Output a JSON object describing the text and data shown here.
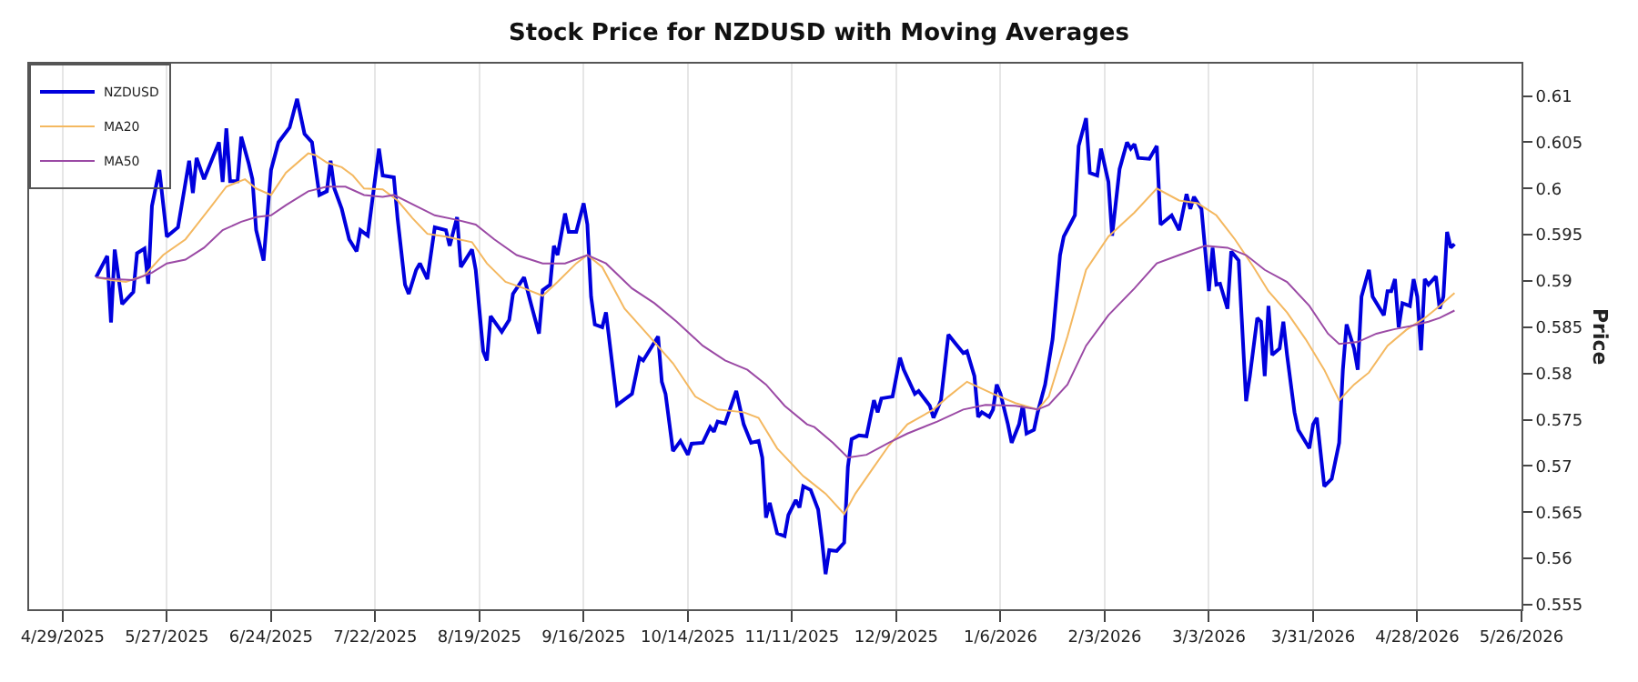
{
  "chart_data": {
    "type": "line",
    "title": "Stock Price for NZDUSD with Moving Averages",
    "ylabel": "Price",
    "xlim": [
      "2025-04-20",
      "2026-05-26"
    ],
    "xticks": [
      {
        "value": "2025-04-29",
        "label": "4/29/2025"
      },
      {
        "value": "2025-05-27",
        "label": "5/27/2025"
      },
      {
        "value": "2025-06-24",
        "label": "6/24/2025"
      },
      {
        "value": "2025-07-22",
        "label": "7/22/2025"
      },
      {
        "value": "2025-08-19",
        "label": "8/19/2025"
      },
      {
        "value": "2025-09-16",
        "label": "9/16/2025"
      },
      {
        "value": "2025-10-14",
        "label": "10/14/2025"
      },
      {
        "value": "2025-11-11",
        "label": "11/11/2025"
      },
      {
        "value": "2025-12-09",
        "label": "12/9/2025"
      },
      {
        "value": "2026-01-06",
        "label": "1/6/2026"
      },
      {
        "value": "2026-02-03",
        "label": "2/3/2026"
      },
      {
        "value": "2026-03-03",
        "label": "3/3/2026"
      },
      {
        "value": "2026-03-31",
        "label": "3/31/2026"
      },
      {
        "value": "2026-04-28",
        "label": "4/28/2026"
      },
      {
        "value": "2026-05-26",
        "label": "5/26/2026"
      }
    ],
    "ylim": [
      0.5545,
      0.6135
    ],
    "yticks": [
      0.555,
      0.56,
      0.565,
      0.57,
      0.575,
      0.58,
      0.585,
      0.59,
      0.595,
      0.6,
      0.605,
      0.61
    ],
    "grid": "x",
    "legend": "top left",
    "series": [
      {
        "name": "NZDUSD",
        "color": "#0000dd",
        "x": [
          "2025-05-08",
          "2025-05-11",
          "2025-05-12",
          "2025-05-13",
          "2025-05-15",
          "2025-05-18",
          "2025-05-19",
          "2025-05-21",
          "2025-05-22",
          "2025-05-23",
          "2025-05-25",
          "2025-05-27",
          "2025-05-30",
          "2025-06-02",
          "2025-06-03",
          "2025-06-04",
          "2025-06-06",
          "2025-06-10",
          "2025-06-11",
          "2025-06-12",
          "2025-06-13",
          "2025-06-15",
          "2025-06-16",
          "2025-06-18",
          "2025-06-19",
          "2025-06-20",
          "2025-06-22",
          "2025-06-24",
          "2025-06-26",
          "2025-06-29",
          "2025-07-01",
          "2025-07-03",
          "2025-07-05",
          "2025-07-07",
          "2025-07-09",
          "2025-07-10",
          "2025-07-11",
          "2025-07-13",
          "2025-07-15",
          "2025-07-17",
          "2025-07-18",
          "2025-07-20",
          "2025-07-23",
          "2025-07-24",
          "2025-07-27",
          "2025-07-28",
          "2025-07-30",
          "2025-07-31",
          "2025-08-02",
          "2025-08-03",
          "2025-08-05",
          "2025-08-07",
          "2025-08-10",
          "2025-08-11",
          "2025-08-13",
          "2025-08-14",
          "2025-08-17",
          "2025-08-18",
          "2025-08-20",
          "2025-08-21",
          "2025-08-22",
          "2025-08-25",
          "2025-08-27",
          "2025-08-28",
          "2025-08-31",
          "2025-09-02",
          "2025-09-04",
          "2025-09-05",
          "2025-09-07",
          "2025-09-08",
          "2025-09-09",
          "2025-09-11",
          "2025-09-12",
          "2025-09-14",
          "2025-09-16",
          "2025-09-17",
          "2025-09-18",
          "2025-09-19",
          "2025-09-21",
          "2025-09-22",
          "2025-09-25",
          "2025-09-29",
          "2025-10-01",
          "2025-10-02",
          "2025-10-06",
          "2025-10-07",
          "2025-10-08",
          "2025-10-10",
          "2025-10-12",
          "2025-10-14",
          "2025-10-15",
          "2025-10-18",
          "2025-10-20",
          "2025-10-21",
          "2025-10-22",
          "2025-10-24",
          "2025-10-27",
          "2025-10-29",
          "2025-10-31",
          "2025-11-02",
          "2025-11-03",
          "2025-11-04",
          "2025-11-05",
          "2025-11-07",
          "2025-11-09",
          "2025-11-10",
          "2025-11-12",
          "2025-11-13",
          "2025-11-14",
          "2025-11-16",
          "2025-11-18",
          "2025-11-19",
          "2025-11-20",
          "2025-11-21",
          "2025-11-23",
          "2025-11-25",
          "2025-11-26",
          "2025-11-27",
          "2025-11-29",
          "2025-12-01",
          "2025-12-03",
          "2025-12-04",
          "2025-12-05",
          "2025-12-08",
          "2025-12-10",
          "2025-12-11",
          "2025-12-14",
          "2025-12-15",
          "2025-12-18",
          "2025-12-19",
          "2025-12-21",
          "2025-12-23",
          "2025-12-25",
          "2025-12-27",
          "2025-12-28",
          "2025-12-30",
          "2025-12-31",
          "2026-01-01",
          "2026-01-03",
          "2026-01-04",
          "2026-01-05",
          "2026-01-06",
          "2026-01-08",
          "2026-01-09",
          "2026-01-11",
          "2026-01-12",
          "2026-01-13",
          "2026-01-15",
          "2026-01-16",
          "2026-01-18",
          "2026-01-20",
          "2026-01-22",
          "2026-01-23",
          "2026-01-26",
          "2026-01-27",
          "2026-01-29",
          "2026-01-30",
          "2026-02-01",
          "2026-02-02",
          "2026-02-04",
          "2026-02-05",
          "2026-02-07",
          "2026-02-09",
          "2026-02-10",
          "2026-02-11",
          "2026-02-12",
          "2026-02-15",
          "2026-02-17",
          "2026-02-18",
          "2026-02-21",
          "2026-02-23",
          "2026-02-25",
          "2026-02-26",
          "2026-02-27",
          "2026-03-01",
          "2026-03-03",
          "2026-03-04",
          "2026-03-05",
          "2026-03-06",
          "2026-03-08",
          "2026-03-09",
          "2026-03-11",
          "2026-03-13",
          "2026-03-14",
          "2026-03-16",
          "2026-03-17",
          "2026-03-18",
          "2026-03-19",
          "2026-03-20",
          "2026-03-22",
          "2026-03-23",
          "2026-03-24",
          "2026-03-26",
          "2026-03-27",
          "2026-03-30",
          "2026-03-31",
          "2026-04-01",
          "2026-04-03",
          "2026-04-05",
          "2026-04-07",
          "2026-04-08",
          "2026-04-09",
          "2026-04-11",
          "2026-04-12",
          "2026-04-13",
          "2026-04-15",
          "2026-04-16",
          "2026-04-19",
          "2026-04-20",
          "2026-04-21",
          "2026-04-22",
          "2026-04-23",
          "2026-04-24",
          "2026-04-26",
          "2026-04-27",
          "2026-04-28",
          "2026-04-29",
          "2026-04-30",
          "2026-05-01",
          "2026-05-03",
          "2026-05-04",
          "2026-05-05",
          "2026-05-06",
          "2026-05-07",
          "2026-05-08"
        ],
        "values": [
          0.5904,
          0.5927,
          0.5855,
          0.5934,
          0.5875,
          0.5888,
          0.593,
          0.5935,
          0.5897,
          0.5981,
          0.602,
          0.5948,
          0.5958,
          0.603,
          0.5995,
          0.6033,
          0.601,
          0.605,
          0.6007,
          0.6065,
          0.6008,
          0.6008,
          0.6056,
          0.6027,
          0.601,
          0.5955,
          0.5922,
          0.602,
          0.605,
          0.6066,
          0.6097,
          0.6059,
          0.605,
          0.5993,
          0.5997,
          0.603,
          0.6,
          0.5978,
          0.5945,
          0.5932,
          0.5955,
          0.5949,
          0.6043,
          0.6014,
          0.6012,
          0.5968,
          0.5896,
          0.5886,
          0.5912,
          0.5919,
          0.5902,
          0.5958,
          0.5955,
          0.5938,
          0.5969,
          0.5915,
          0.5934,
          0.5912,
          0.5824,
          0.5814,
          0.5862,
          0.5845,
          0.5858,
          0.5886,
          0.5904,
          0.5873,
          0.5843,
          0.589,
          0.5896,
          0.5938,
          0.5928,
          0.5973,
          0.5953,
          0.5953,
          0.5984,
          0.5961,
          0.5883,
          0.5853,
          0.585,
          0.5866,
          0.5766,
          0.5778,
          0.5817,
          0.5814,
          0.584,
          0.5791,
          0.5778,
          0.5716,
          0.5727,
          0.5712,
          0.5724,
          0.5725,
          0.5742,
          0.5737,
          0.5748,
          0.5746,
          0.5781,
          0.5745,
          0.5725,
          0.5727,
          0.5709,
          0.5644,
          0.566,
          0.5627,
          0.5624,
          0.5647,
          0.5663,
          0.5655,
          0.5678,
          0.5674,
          0.5653,
          0.5621,
          0.5583,
          0.5609,
          0.5608,
          0.5617,
          0.5699,
          0.5729,
          0.5733,
          0.5732,
          0.5771,
          0.5758,
          0.5773,
          0.5775,
          0.5817,
          0.5804,
          0.5778,
          0.5781,
          0.5765,
          0.5752,
          0.5771,
          0.5842,
          0.5832,
          0.5822,
          0.5824,
          0.5797,
          0.5753,
          0.5758,
          0.5753,
          0.5761,
          0.5788,
          0.5778,
          0.5745,
          0.5725,
          0.5745,
          0.5766,
          0.5735,
          0.5739,
          0.5758,
          0.5788,
          0.5837,
          0.5928,
          0.5948,
          0.5971,
          0.6046,
          0.6076,
          0.6017,
          0.6014,
          0.6043,
          0.6007,
          0.5949,
          0.6021,
          0.605,
          0.6043,
          0.6048,
          0.6033,
          0.6032,
          0.6046,
          0.5961,
          0.5971,
          0.5955,
          0.5994,
          0.5978,
          0.5991,
          0.5978,
          0.5889,
          0.5936,
          0.5896,
          0.5897,
          0.587,
          0.5932,
          0.5922,
          0.577,
          0.5797,
          0.586,
          0.5856,
          0.5797,
          0.5873,
          0.582,
          0.5827,
          0.5856,
          0.582,
          0.5758,
          0.5739,
          0.5719,
          0.5745,
          0.5752,
          0.5678,
          0.5686,
          0.5725,
          0.5804,
          0.5853,
          0.5827,
          0.5804,
          0.5883,
          0.5912,
          0.5883,
          0.5863,
          0.5889,
          0.5889,
          0.5902,
          0.585,
          0.5876,
          0.5873,
          0.5902,
          0.5883,
          0.5825,
          0.5902,
          0.5896,
          0.5905,
          0.587,
          0.5883,
          0.5953,
          0.5936,
          0.594
        ]
      },
      {
        "name": "MA20",
        "color": "#f4b860",
        "x": [
          "2025-05-08",
          "2025-05-12",
          "2025-05-16",
          "2025-05-21",
          "2025-05-26",
          "2025-06-01",
          "2025-06-08",
          "2025-06-12",
          "2025-06-17",
          "2025-06-20",
          "2025-06-24",
          "2025-06-28",
          "2025-07-04",
          "2025-07-06",
          "2025-07-09",
          "2025-07-13",
          "2025-07-16",
          "2025-07-19",
          "2025-07-24",
          "2025-07-28",
          "2025-08-01",
          "2025-08-05",
          "2025-08-10",
          "2025-08-17",
          "2025-08-21",
          "2025-08-26",
          "2025-08-31",
          "2025-09-05",
          "2025-09-09",
          "2025-09-14",
          "2025-09-17",
          "2025-09-21",
          "2025-09-27",
          "2025-10-03",
          "2025-10-10",
          "2025-10-16",
          "2025-10-22",
          "2025-10-29",
          "2025-11-02",
          "2025-11-07",
          "2025-11-14",
          "2025-11-15",
          "2025-11-20",
          "2025-11-25",
          "2025-11-28",
          "2025-12-03",
          "2025-12-07",
          "2025-12-12",
          "2025-12-19",
          "2025-12-23",
          "2025-12-28",
          "2026-01-04",
          "2026-01-10",
          "2026-01-16",
          "2026-01-19",
          "2026-01-24",
          "2026-01-29",
          "2026-02-04",
          "2026-02-11",
          "2026-02-17",
          "2026-02-23",
          "2026-02-28",
          "2026-03-05",
          "2026-03-10",
          "2026-03-15",
          "2026-03-19",
          "2026-03-24",
          "2026-03-29",
          "2026-04-03",
          "2026-04-07",
          "2026-04-11",
          "2026-04-15",
          "2026-04-20",
          "2026-04-25",
          "2026-04-30",
          "2026-05-04",
          "2026-05-08"
        ],
        "values": [
          0.5904,
          0.5901,
          0.5899,
          0.5906,
          0.5928,
          0.5945,
          0.5981,
          0.6002,
          0.601,
          0.6,
          0.5993,
          0.6017,
          0.6038,
          0.6036,
          0.6028,
          0.6023,
          0.6014,
          0.6,
          0.5999,
          0.5987,
          0.5968,
          0.5951,
          0.5948,
          0.5942,
          0.5919,
          0.5899,
          0.5892,
          0.5884,
          0.5899,
          0.5919,
          0.5928,
          0.5915,
          0.587,
          0.5843,
          0.5811,
          0.5775,
          0.5761,
          0.5758,
          0.5752,
          0.5719,
          0.5689,
          0.5686,
          0.567,
          0.5648,
          0.567,
          0.5699,
          0.5722,
          0.5745,
          0.5761,
          0.5775,
          0.5791,
          0.5778,
          0.5768,
          0.5761,
          0.5775,
          0.584,
          0.5912,
          0.5948,
          0.5974,
          0.6,
          0.5987,
          0.5984,
          0.5971,
          0.5945,
          0.5915,
          0.5889,
          0.5866,
          0.5837,
          0.5804,
          0.5771,
          0.5788,
          0.5801,
          0.583,
          0.5847,
          0.586,
          0.5873,
          0.5887
        ]
      },
      {
        "name": "MA50",
        "color": "#9b4aa5",
        "x": [
          "2025-05-08",
          "2025-05-13",
          "2025-05-18",
          "2025-05-23",
          "2025-05-27",
          "2025-06-01",
          "2025-06-06",
          "2025-06-11",
          "2025-06-16",
          "2025-06-20",
          "2025-06-24",
          "2025-06-28",
          "2025-07-04",
          "2025-07-09",
          "2025-07-14",
          "2025-07-19",
          "2025-07-24",
          "2025-07-27",
          "2025-08-02",
          "2025-08-07",
          "2025-08-13",
          "2025-08-18",
          "2025-08-23",
          "2025-08-29",
          "2025-09-05",
          "2025-09-11",
          "2025-09-17",
          "2025-09-22",
          "2025-09-29",
          "2025-10-05",
          "2025-10-11",
          "2025-10-18",
          "2025-10-24",
          "2025-10-30",
          "2025-11-04",
          "2025-11-09",
          "2025-11-15",
          "2025-11-17",
          "2025-11-22",
          "2025-11-26",
          "2025-12-01",
          "2025-12-07",
          "2025-12-12",
          "2025-12-20",
          "2025-12-27",
          "2026-01-02",
          "2026-01-10",
          "2026-01-16",
          "2026-01-19",
          "2026-01-24",
          "2026-01-29",
          "2026-02-04",
          "2026-02-11",
          "2026-02-17",
          "2026-02-23",
          "2026-03-02",
          "2026-03-08",
          "2026-03-13",
          "2026-03-18",
          "2026-03-24",
          "2026-03-30",
          "2026-04-04",
          "2026-04-07",
          "2026-04-12",
          "2026-04-17",
          "2026-04-22",
          "2026-04-26",
          "2026-05-01",
          "2026-05-04",
          "2026-05-08"
        ],
        "values": [
          0.5904,
          0.5902,
          0.5901,
          0.5909,
          0.5919,
          0.5923,
          0.5936,
          0.5955,
          0.5964,
          0.5969,
          0.5971,
          0.5982,
          0.5997,
          0.6002,
          0.6002,
          0.5993,
          0.5991,
          0.5993,
          0.5981,
          0.5971,
          0.5966,
          0.5961,
          0.5945,
          0.5928,
          0.5919,
          0.5919,
          0.5928,
          0.5919,
          0.5892,
          0.5876,
          0.5856,
          0.583,
          0.5814,
          0.5804,
          0.5788,
          0.5765,
          0.5745,
          0.5742,
          0.5725,
          0.5709,
          0.5712,
          0.5725,
          0.5735,
          0.5748,
          0.5761,
          0.5766,
          0.5765,
          0.5761,
          0.5766,
          0.5788,
          0.583,
          0.5863,
          0.5892,
          0.5919,
          0.5928,
          0.5938,
          0.5936,
          0.5928,
          0.5912,
          0.5899,
          0.5873,
          0.5843,
          0.5832,
          0.5834,
          0.5843,
          0.5848,
          0.5851,
          0.5856,
          0.586,
          0.5868
        ]
      }
    ]
  }
}
